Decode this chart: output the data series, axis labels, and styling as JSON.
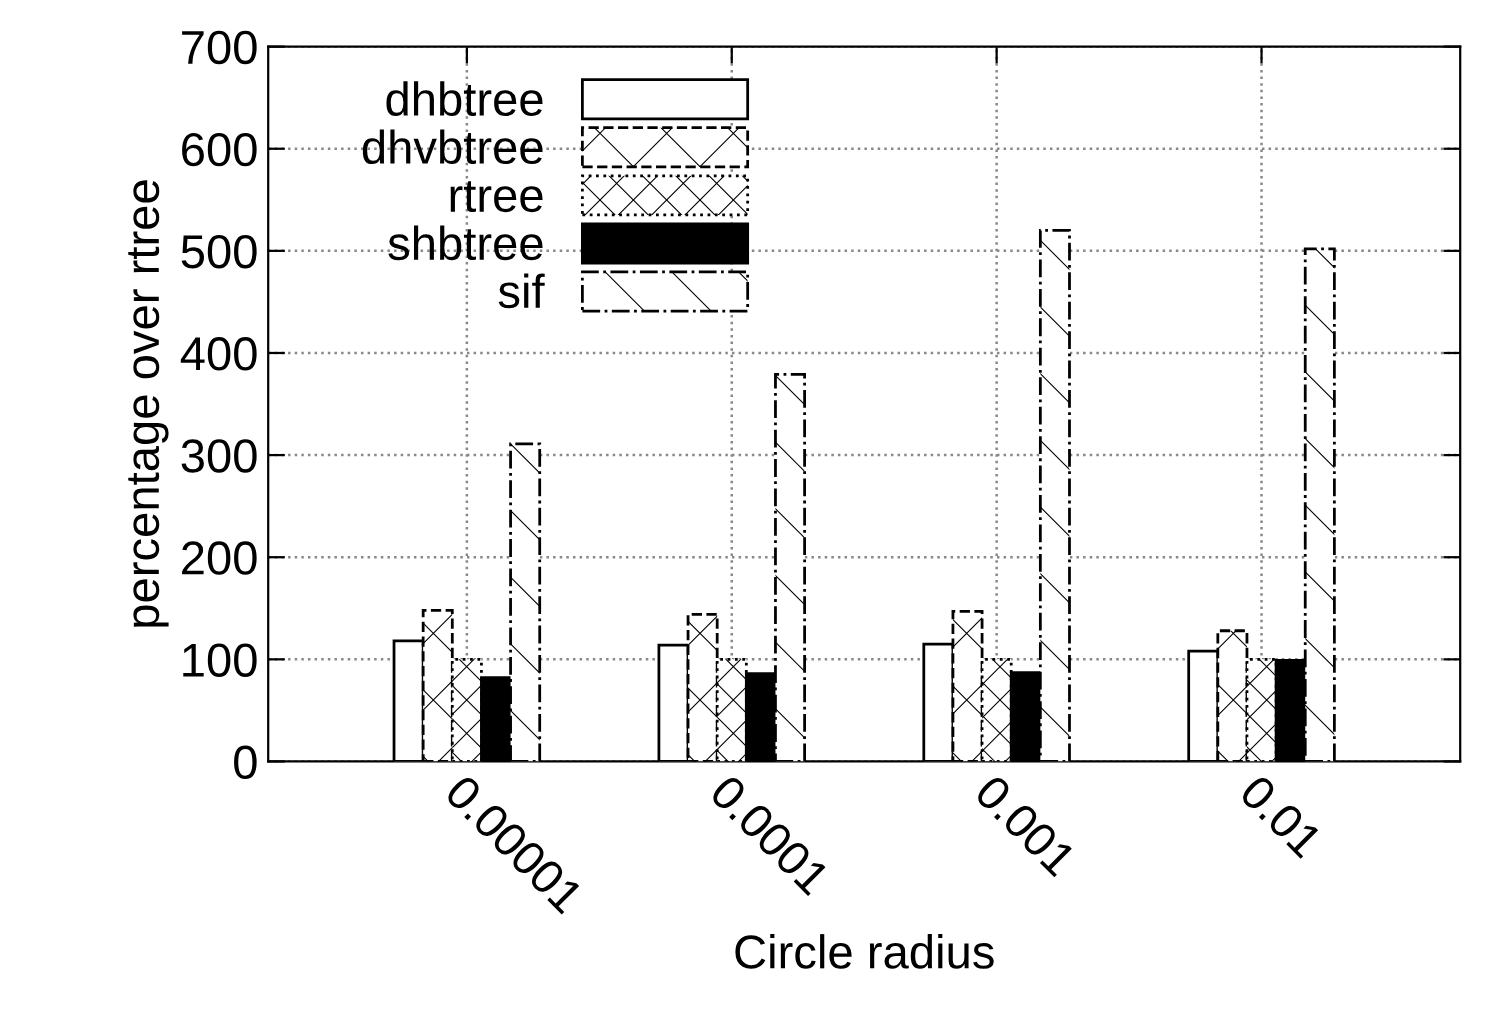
{
  "chart_data": {
    "type": "bar",
    "xlabel": "Circle radius",
    "ylabel": "percentage over rtree",
    "categories": [
      "0.00001",
      "0.0001",
      "0.001",
      "0.01"
    ],
    "series": [
      {
        "name": "dhbtree",
        "color": "#ffffff",
        "values": [
          118,
          114,
          115,
          108
        ]
      },
      {
        "name": "dhvbtree",
        "color": "#000000",
        "values": [
          148,
          144,
          147,
          128
        ]
      },
      {
        "name": "rtree",
        "color": "#000000",
        "values": [
          100,
          100,
          100,
          100
        ]
      },
      {
        "name": "shbtree",
        "color": "#000000",
        "values": [
          82,
          86,
          87,
          99
        ]
      },
      {
        "name": "sif",
        "color": "#000000",
        "values": [
          311,
          379,
          520,
          502
        ]
      }
    ],
    "ylim": [
      0,
      700
    ],
    "yticks": [
      0,
      100,
      200,
      300,
      400,
      500,
      600,
      700
    ],
    "grid": true,
    "legend": "top left"
  }
}
